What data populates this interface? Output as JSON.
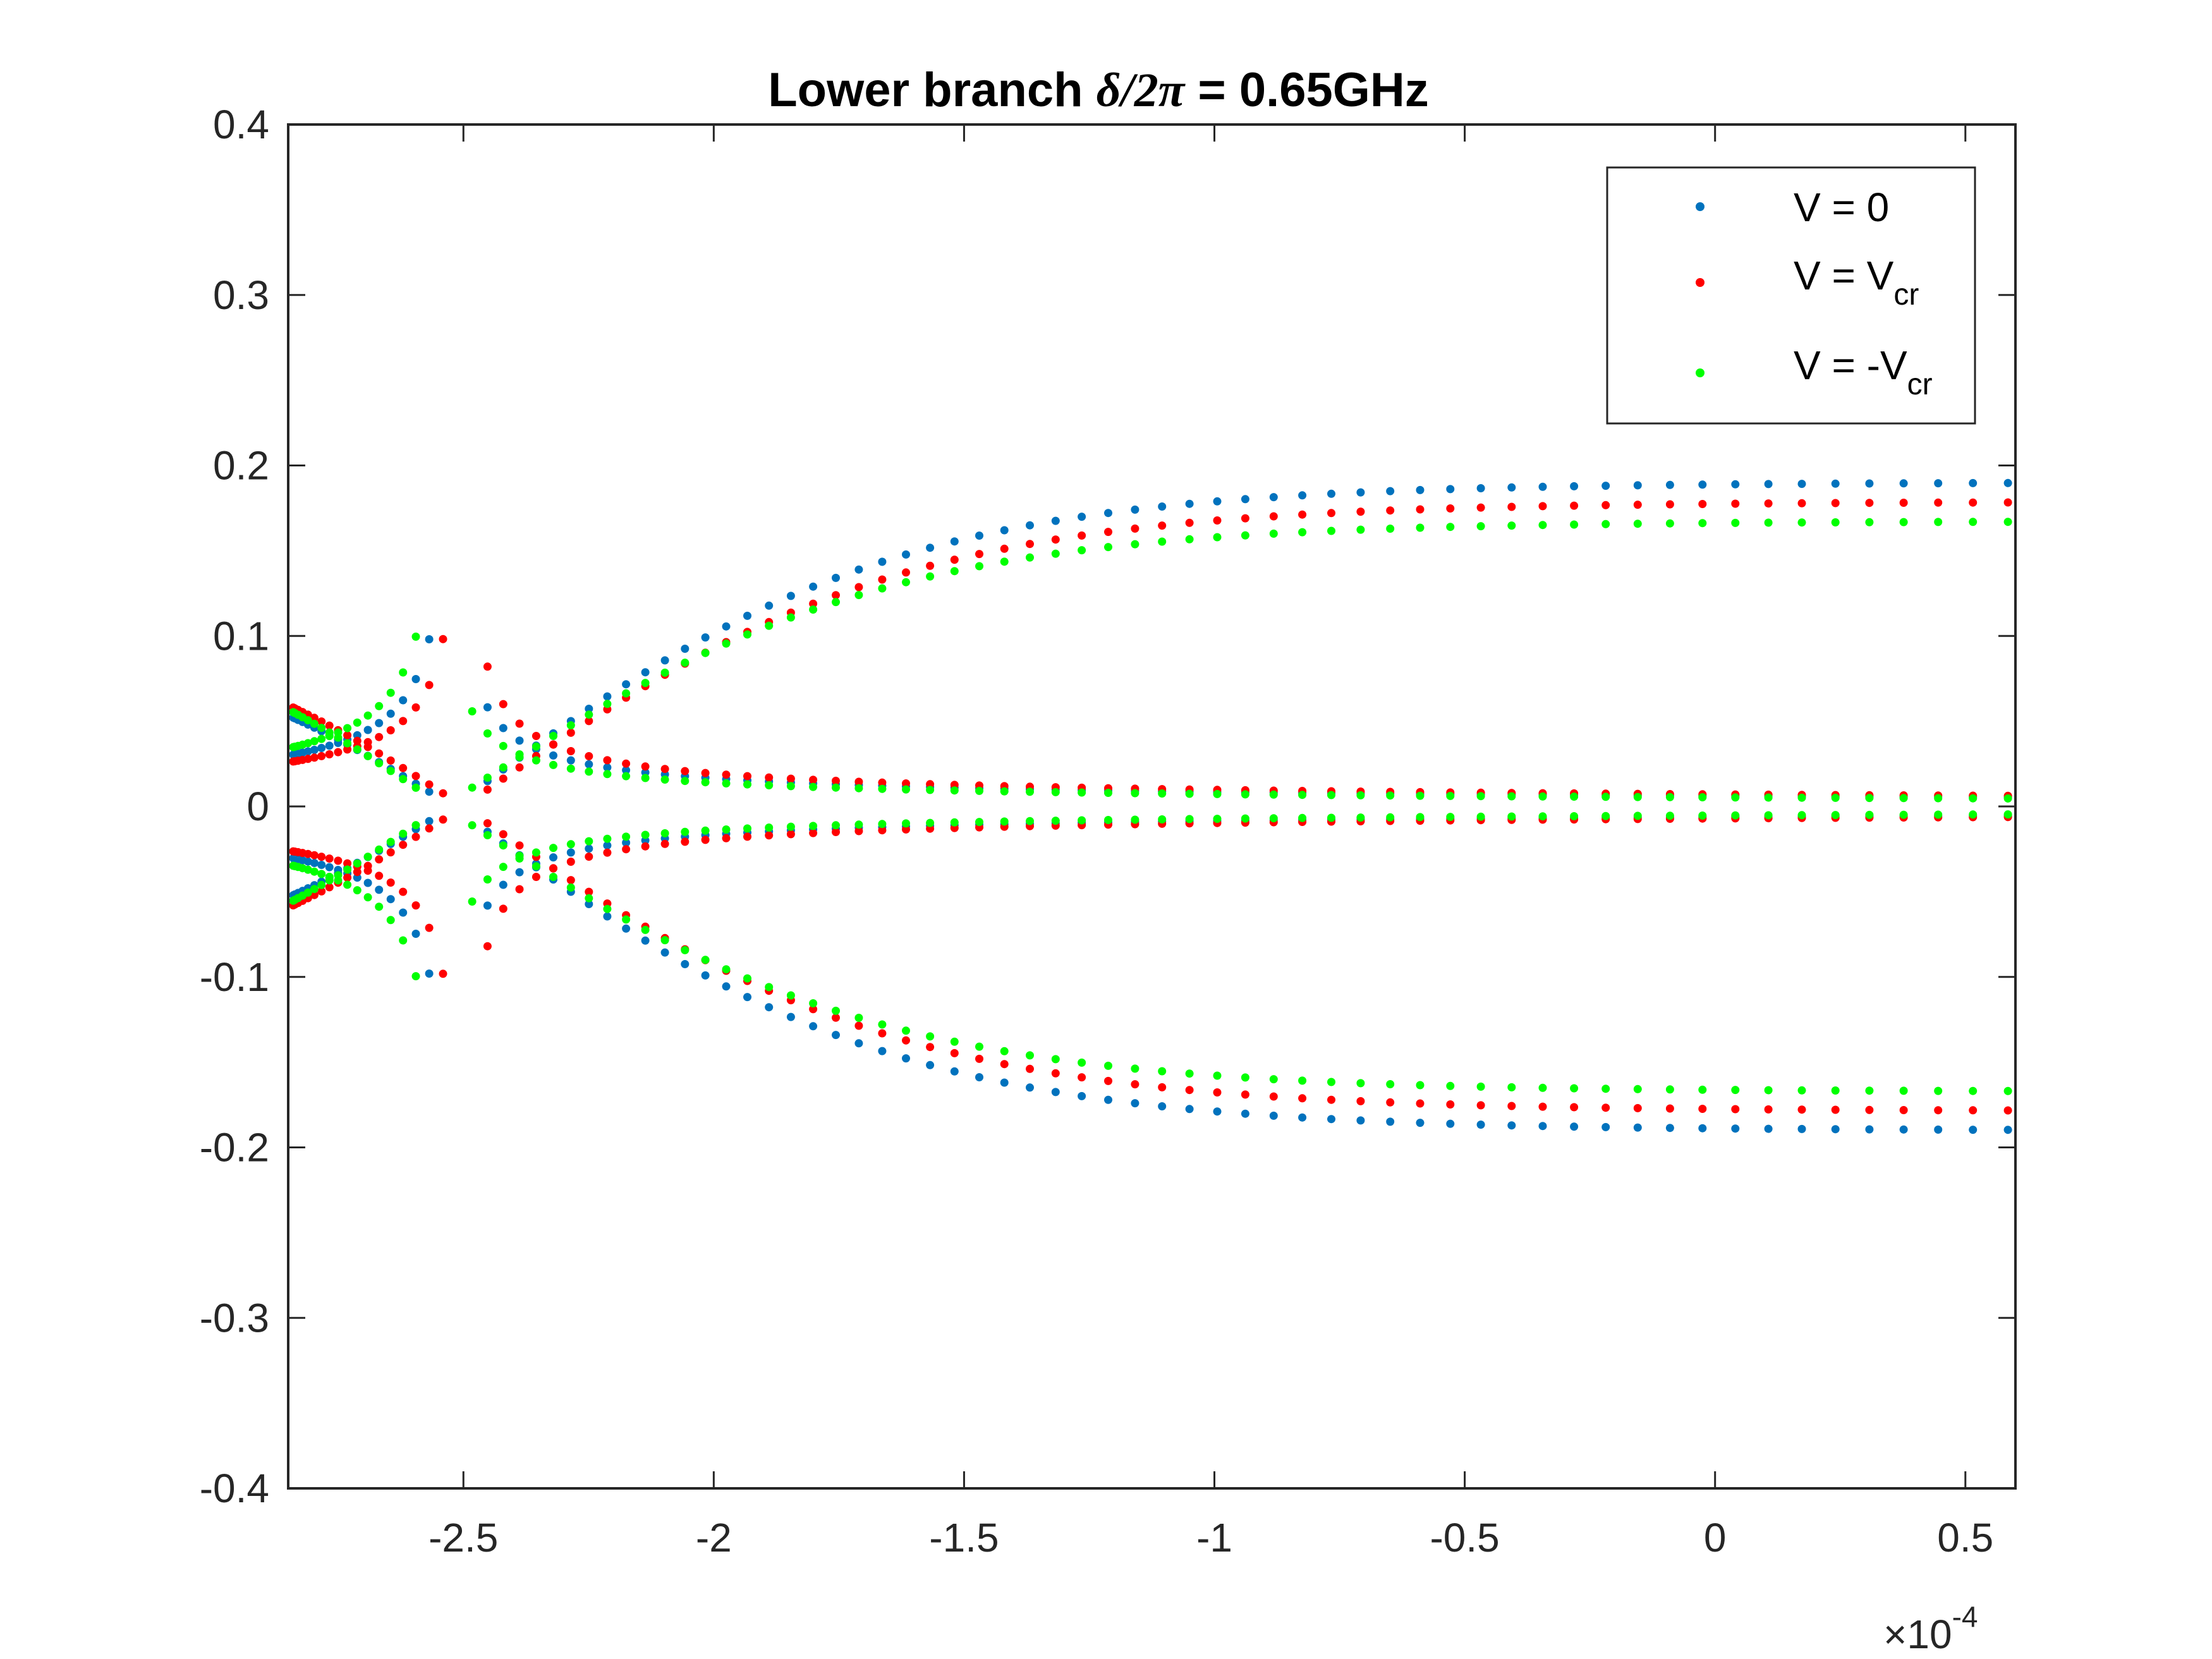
{
  "chart_data": {
    "type": "scatter",
    "title": {
      "prefix": "Lower branch ",
      "symbol": "δ/2π",
      "suffix": " = 0.65GHz"
    },
    "xlabel": "",
    "ylabel": "",
    "x_scale_note": {
      "base": "×10",
      "exponent": "-4"
    },
    "xlim": [
      -2.85,
      0.6
    ],
    "ylim": [
      -0.4,
      0.4
    ],
    "x_ticks": [
      -2.5,
      -2,
      -1.5,
      -1,
      -0.5,
      0,
      0.5
    ],
    "x_tick_labels": [
      "-2.5",
      "-2",
      "-1.5",
      "-1",
      "-0.5",
      "0",
      "0.5"
    ],
    "y_ticks": [
      0.4,
      0.3,
      0.2,
      0.1,
      0,
      -0.1,
      -0.2,
      -0.3,
      -0.4
    ],
    "y_tick_labels": [
      "0.4",
      "0.3",
      "0.2",
      "0.1",
      "0",
      "-0.1",
      "-0.2",
      "-0.3",
      "-0.4"
    ],
    "grid": false,
    "legend_position": "top-right",
    "series": [
      {
        "name": "V = 0",
        "label_main": "V = ",
        "label_sub": "",
        "label_value": "0",
        "color": "#0072bd",
        "x_pole": -2.52,
        "amp_left": 0.015,
        "amp_right": 0.011
      },
      {
        "name": "V = Vcr",
        "label_main": "V = V",
        "label_sub": "cr",
        "label_value": "",
        "color": "#ff0000",
        "x_pole": -2.5,
        "amp_left": 0.0135,
        "amp_right": 0.0125
      },
      {
        "name": "V = -Vcr",
        "label_main": "V = -V",
        "label_sub": "cr",
        "label_value": "",
        "color": "#00ff00",
        "x_pole": -2.54,
        "amp_left": 0.0165,
        "amp_right": 0.0095
      }
    ]
  }
}
